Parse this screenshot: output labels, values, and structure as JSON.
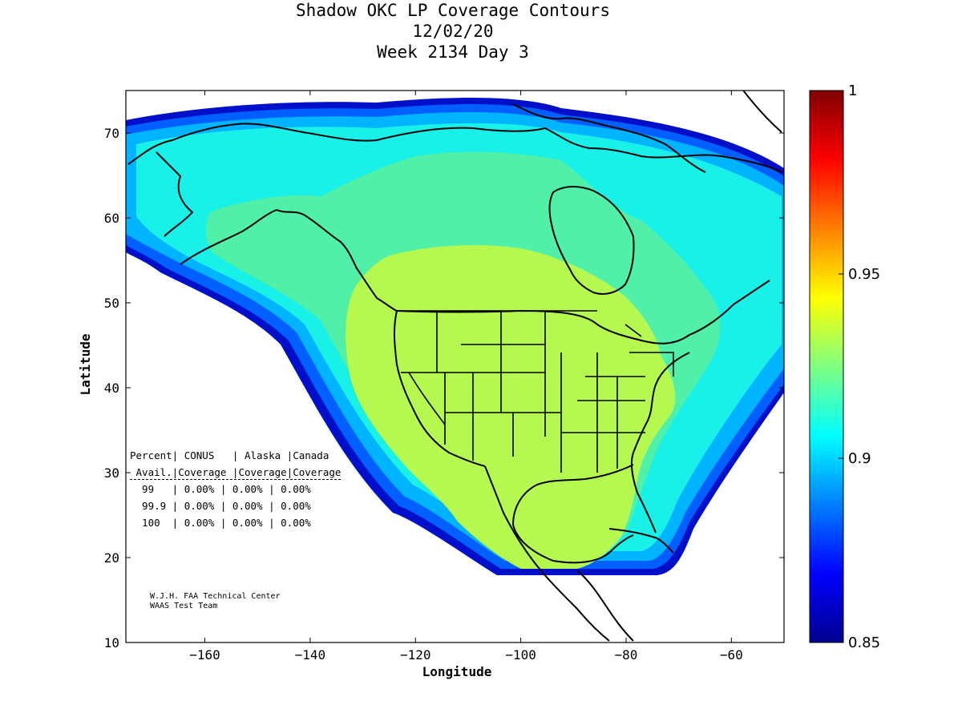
{
  "title": {
    "line1": "Shadow OKC LP Coverage Contours",
    "line2": "12/02/20",
    "line3": "Week 2134 Day 3"
  },
  "axes": {
    "xlabel": "Longitude",
    "ylabel": "Latitude",
    "x_range": [
      -175,
      -50
    ],
    "y_range": [
      10,
      75
    ],
    "x_ticks": [
      -160,
      -140,
      -120,
      -100,
      -80,
      -60
    ],
    "y_ticks": [
      10,
      20,
      30,
      40,
      50,
      60,
      70
    ]
  },
  "colorbar": {
    "range": [
      0.85,
      1
    ],
    "tick_labels": [
      "1",
      "0.95",
      "0.9",
      "0.85"
    ],
    "colormap": "jet"
  },
  "table": {
    "header1": "Percent| CONUS   | Alaska |Canada",
    "header2": " Avail.|Coverage |Coverage|Coverage",
    "rows": [
      "  99   | 0.00% | 0.00% | 0.00%",
      "  99.9 | 0.00% | 0.00% | 0.00%",
      "  100  | 0.00% | 0.00% | 0.00%"
    ]
  },
  "credit": {
    "line1": "W.J.H. FAA Technical Center",
    "line2": "WAAS Test Team"
  },
  "colors": {
    "outer_dark_blue": "#0010c8",
    "blue": "#0060ff",
    "light_blue": "#00b4ff",
    "cyan": "#18f0e8",
    "aqua_green": "#50f0a8",
    "green": "#7cf090",
    "yellow_green": "#b4f850"
  }
}
